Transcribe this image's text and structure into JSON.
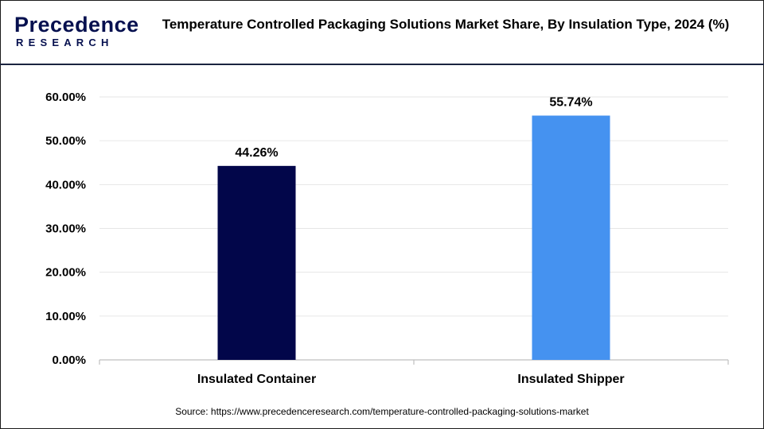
{
  "header": {
    "logo_text": "Precedence",
    "logo_sub": "RESEARCH",
    "title": "Temperature Controlled Packaging Solutions Market Share, By Insulation Type, 2024 (%)"
  },
  "source": "Source: https://www.precedenceresearch.com/temperature-controlled-packaging-solutions-market",
  "colors": {
    "brand": "#06104f",
    "bar_1": "#02064a",
    "bar_2": "#4592f0",
    "grid": "#e6e6e6",
    "axis": "#bfbfbf"
  },
  "chart_data": {
    "type": "bar",
    "title": "Temperature Controlled Packaging Solutions Market Share, By Insulation Type, 2024 (%)",
    "categories": [
      "Insulated Container",
      "Insulated Shipper"
    ],
    "values": [
      44.26,
      55.74
    ],
    "data_labels": [
      "44.26%",
      "55.74%"
    ],
    "ylim": [
      0,
      60
    ],
    "yticks": [
      0,
      10,
      20,
      30,
      40,
      50,
      60
    ],
    "ytick_labels": [
      "0.00%",
      "10.00%",
      "20.00%",
      "30.00%",
      "40.00%",
      "50.00%",
      "60.00%"
    ],
    "grid": true,
    "xlabel": "",
    "ylabel": ""
  }
}
